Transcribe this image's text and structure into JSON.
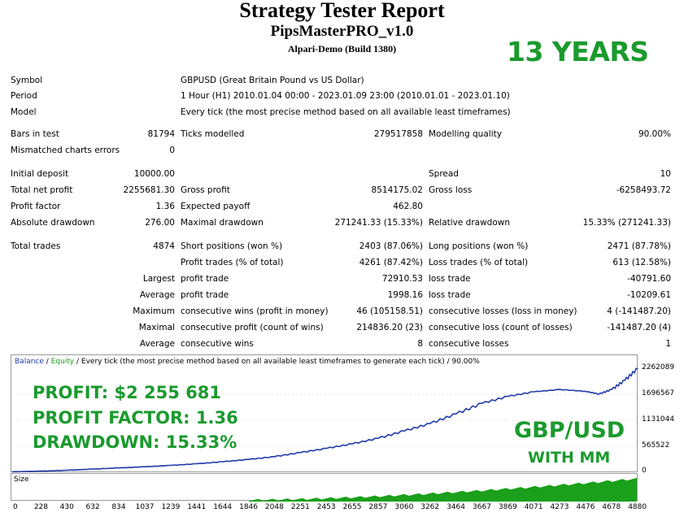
{
  "header": {
    "title": "Strategy Tester Report",
    "ea_name": "PipsMasterPRO_v1.0",
    "server": "Alpari-Demo (Build 1380)",
    "badge": "13 YEARS"
  },
  "info": {
    "symbol_label": "Symbol",
    "symbol_value": "GBPUSD (Great Britain Pound vs US Dollar)",
    "period_label": "Period",
    "period_value": "1 Hour (H1) 2010.01.04 00:00 - 2023.01.09 23:00 (2010.01.01 - 2023.01.10)",
    "model_label": "Model",
    "model_value": "Every tick (the most precise method based on all available least timeframes)"
  },
  "stats": {
    "bars_label": "Bars in test",
    "bars_value": "81794",
    "ticks_label": "Ticks modelled",
    "ticks_value": "279517858",
    "quality_label": "Modelling quality",
    "quality_value": "90.00%",
    "mismatch_label": "Mismatched charts errors",
    "mismatch_value": "0",
    "deposit_label": "Initial deposit",
    "deposit_value": "10000.00",
    "spread_label": "Spread",
    "spread_value": "10",
    "net_label": "Total net profit",
    "net_value": "2255681.30",
    "gross_profit_label": "Gross profit",
    "gross_profit_value": "8514175.02",
    "gross_loss_label": "Gross loss",
    "gross_loss_value": "-6258493.72",
    "pf_label": "Profit factor",
    "pf_value": "1.36",
    "payoff_label": "Expected payoff",
    "payoff_value": "462.80",
    "abs_dd_label": "Absolute drawdown",
    "abs_dd_value": "276.00",
    "max_dd_label": "Maximal drawdown",
    "max_dd_value": "271241.33 (15.33%)",
    "rel_dd_label": "Relative drawdown",
    "rel_dd_value": "15.33% (271241.33)",
    "trades_label": "Total trades",
    "trades_value": "4874",
    "short_label": "Short positions (won %)",
    "short_value": "2403 (87.06%)",
    "long_label": "Long positions (won %)",
    "long_value": "2471 (87.78%)",
    "profit_trades_label": "Profit trades (% of total)",
    "profit_trades_value": "4261 (87.42%)",
    "loss_trades_label": "Loss trades (% of total)",
    "loss_trades_value": "613 (12.58%)",
    "largest_label": "Largest",
    "largest_profit_label": "profit trade",
    "largest_profit_value": "72910.53",
    "largest_loss_label": "loss trade",
    "largest_loss_value": "-40791.60",
    "average_label": "Average",
    "avg_profit_label": "profit trade",
    "avg_profit_value": "1998.16",
    "avg_loss_label": "loss trade",
    "avg_loss_value": "-10209.61",
    "maximum_label": "Maximum",
    "max_wins_label": "consecutive wins (profit in money)",
    "max_wins_value": "46 (105158.51)",
    "max_losses_label": "consecutive losses (loss in money)",
    "max_losses_value": "4 (-141487.20)",
    "maximal_label": "Maximal",
    "maximal_profit_label": "consecutive profit (count of wins)",
    "maximal_profit_value": "214836.20 (23)",
    "maximal_loss_label": "consecutive loss (count of losses)",
    "maximal_loss_value": "-141487.20 (4)",
    "average2_label": "Average",
    "avg_wins_label": "consecutive wins",
    "avg_wins_value": "8",
    "avg_losses_label": "consecutive losses",
    "avg_losses_value": "1"
  },
  "chart_data": {
    "type": "line",
    "legend_balance": "Balance",
    "legend_sep": " / ",
    "legend_equity": "Equity",
    "legend_rest": " / Every tick (the most precise method based on all available least timeframes to generate each tick) / 90.00%",
    "y_ticks": [
      "2262089",
      "1696567",
      "1131044",
      "565522",
      "0"
    ],
    "x_ticks": [
      "0",
      "228",
      "430",
      "632",
      "834",
      "1037",
      "1239",
      "1441",
      "1644",
      "1846",
      "2048",
      "2251",
      "2453",
      "2655",
      "2857",
      "3060",
      "3262",
      "3464",
      "3667",
      "3869",
      "4071",
      "4273",
      "4476",
      "4678",
      "4880"
    ],
    "size_label": "Size",
    "xlim": [
      0,
      4880
    ],
    "ylim": [
      0,
      2262089
    ],
    "series": [
      {
        "name": "Balance",
        "color": "#1f3ba8",
        "x": [
          0,
          228,
          430,
          632,
          834,
          1037,
          1239,
          1441,
          1644,
          1846,
          2048,
          2251,
          2453,
          2655,
          2857,
          3060,
          3262,
          3464,
          3667,
          3869,
          4071,
          4273,
          4476,
          4578,
          4678,
          4780,
          4880
        ],
        "values": [
          10000,
          25000,
          45000,
          70000,
          95000,
          120000,
          150000,
          185000,
          230000,
          280000,
          340000,
          430000,
          520000,
          620000,
          740000,
          900000,
          1060000,
          1270000,
          1500000,
          1650000,
          1750000,
          1800000,
          1760000,
          1700000,
          1800000,
          2000000,
          2255681
        ]
      }
    ],
    "size_ramp": "increasing"
  },
  "overlay": {
    "profit": "PROFIT: $2 255 681",
    "profit_factor": "PROFIT FACTOR: 1.36",
    "drawdown": "DRAWDOWN: 15.33%",
    "pair": "GBP/USD",
    "mm": "WITH MM"
  },
  "colors": {
    "accent": "#1b9a2e",
    "balance": "#1f3ba8",
    "equity": "#1aa01a",
    "size_fill": "#1aa01a"
  }
}
